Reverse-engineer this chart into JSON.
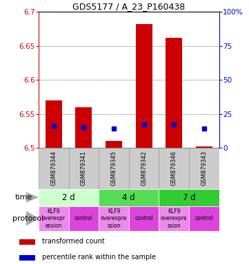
{
  "title": "GDS5177 / A_23_P160438",
  "samples": [
    "GSM879344",
    "GSM879341",
    "GSM879345",
    "GSM879342",
    "GSM879346",
    "GSM879343"
  ],
  "red_tops": [
    6.57,
    6.56,
    6.51,
    6.682,
    6.662,
    6.502
  ],
  "red_bottoms": [
    6.5,
    6.5,
    6.5,
    6.5,
    6.5,
    6.5
  ],
  "blue_y": [
    6.532,
    6.53,
    6.528,
    6.534,
    6.534,
    6.528
  ],
  "ylim": [
    6.5,
    6.7
  ],
  "yticks_left": [
    6.5,
    6.55,
    6.6,
    6.65,
    6.7
  ],
  "yticks_right": [
    0,
    25,
    50,
    75,
    100
  ],
  "left_color": "#cc0000",
  "right_color": "#0000cc",
  "bar_color": "#cc0000",
  "blue_color": "#0000cc",
  "time_groups": [
    {
      "label": "2 d",
      "start": 0,
      "end": 2,
      "color": "#ccffcc"
    },
    {
      "label": "4 d",
      "start": 2,
      "end": 4,
      "color": "#55dd55"
    },
    {
      "label": "7 d",
      "start": 4,
      "end": 6,
      "color": "#33cc33"
    }
  ],
  "protocol_groups": [
    {
      "label": "KLF9\noverexpr\nession",
      "start": 0,
      "end": 1,
      "color": "#ee88ee"
    },
    {
      "label": "control",
      "start": 1,
      "end": 2,
      "color": "#dd44dd"
    },
    {
      "label": "KLF9\noverexpre\nssion",
      "start": 2,
      "end": 3,
      "color": "#ee88ee"
    },
    {
      "label": "control",
      "start": 3,
      "end": 4,
      "color": "#dd44dd"
    },
    {
      "label": "KLF9\noverexpre\nssion",
      "start": 4,
      "end": 5,
      "color": "#ee88ee"
    },
    {
      "label": "control",
      "start": 5,
      "end": 6,
      "color": "#dd44dd"
    }
  ],
  "bg_color": "#ffffff",
  "bar_width": 0.55,
  "sample_bg_color": "#cccccc",
  "sample_edge_color": "#999999"
}
